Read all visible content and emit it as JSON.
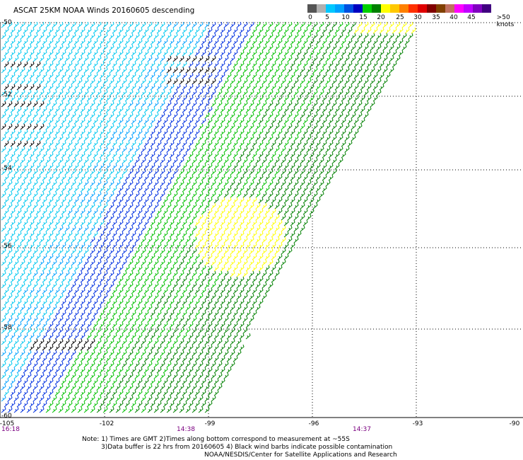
{
  "title": "ASCAT 25KM NOAA Winds 20160605 descending",
  "colorbar": {
    "colors": [
      "#555555",
      "#b0b0b0",
      "#00c8ff",
      "#00a0ff",
      "#0050e0",
      "#0000c0",
      "#00d000",
      "#008000",
      "#ffff00",
      "#ffc800",
      "#ff8000",
      "#ff3000",
      "#e00000",
      "#800000",
      "#804000",
      "#c07060",
      "#ff00ff",
      "#c000ff",
      "#8000c0",
      "#400080"
    ],
    "labels": [
      "0",
      "5",
      "10",
      "15",
      "20",
      "25",
      "30",
      "35",
      "40",
      "45",
      ">50 knots"
    ]
  },
  "lat_labels": [
    "-50",
    "-52",
    "-54",
    "-56",
    "-58",
    "-60"
  ],
  "lon_labels": [
    "-105",
    "-102",
    "-99",
    "-96",
    "-93",
    "-90"
  ],
  "time_labels": [
    "16:18",
    "14:38",
    "14:37"
  ],
  "notes": [
    "Note: 1) Times are GMT 2)Times along bottom correspond to measurement at ~55S",
    "3)Data buffer is 22 hrs from 20160605 4) Black wind barbs indicate possible contamination",
    "NOAA/NESDIS/Center for Satellite Applications and Research"
  ],
  "wind_colors": {
    "black": "#000000",
    "cyan": "#00c8f0",
    "light_blue": "#00a0ff",
    "blue": "#0030e0",
    "green": "#00c000",
    "dark_green": "#008000",
    "yellow": "#ffff00"
  }
}
